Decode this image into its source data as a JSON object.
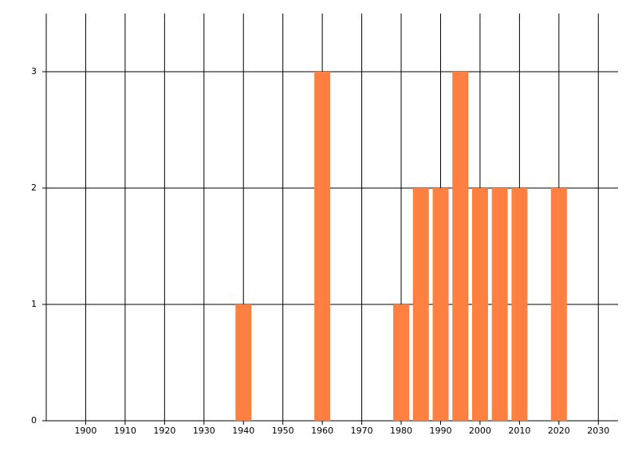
{
  "chart_data": {
    "type": "bar",
    "x": [
      1940,
      1960,
      1980,
      1985,
      1990,
      1995,
      2000,
      2005,
      2010,
      2020
    ],
    "values": [
      1,
      3,
      1,
      2,
      2,
      3,
      2,
      2,
      2,
      2
    ],
    "color": "#ff8040",
    "xlim": [
      1890,
      2035
    ],
    "xticks": [
      1900,
      1910,
      1920,
      1930,
      1940,
      1950,
      1960,
      1970,
      1980,
      1990,
      2000,
      2010,
      2020,
      2030
    ],
    "ylim": [
      0,
      3.5
    ],
    "yticks": [
      0,
      1,
      2,
      3
    ],
    "grid": true
  }
}
